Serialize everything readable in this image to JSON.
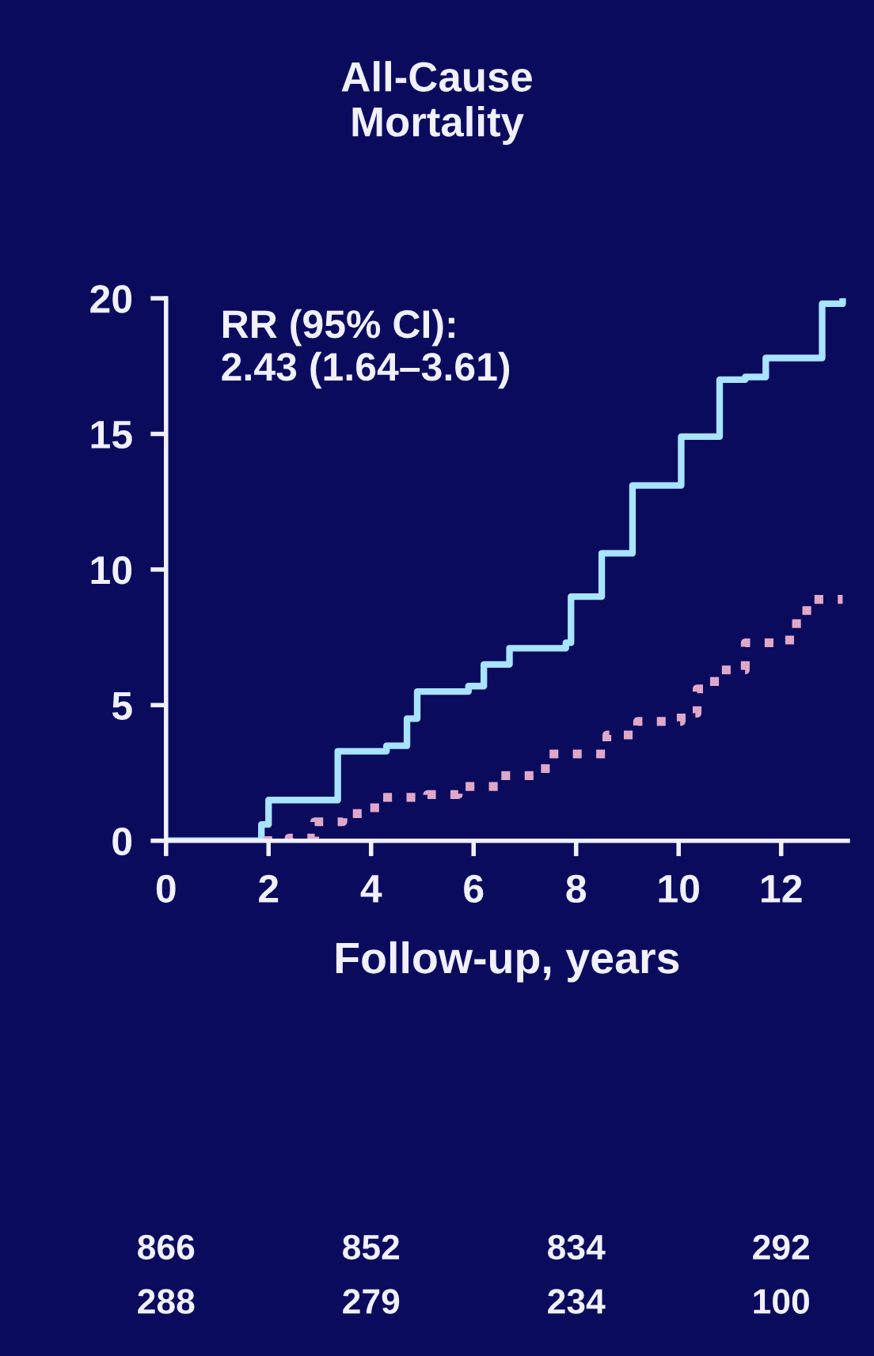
{
  "chart_data": {
    "type": "step",
    "title": "All-Cause\nMortality",
    "xlabel": "Follow-up, years",
    "annotations": [
      "RR (95% CI):\n2.43 (1.64–3.61)",
      "866",
      "852",
      "834",
      "292",
      "288",
      "279",
      "234",
      "100"
    ],
    "series": [
      {
        "color": "#a8e4ff",
        "line_style": "solid",
        "x": [
          0,
          1.86,
          2.0,
          2.9,
          3.35,
          4.3,
          4.7,
          4.9,
          5.9,
          6.2,
          6.7,
          7.8,
          7.9,
          8.5,
          9.1,
          10.05,
          10.8,
          11.3,
          11.7,
          12.7,
          12.8,
          13.2
        ],
        "values": [
          0,
          0.6,
          1.5,
          1.5,
          3.3,
          3.5,
          4.5,
          5.5,
          5.7,
          6.5,
          7.1,
          7.3,
          9.0,
          10.6,
          13.1,
          14.9,
          17.0,
          17.1,
          17.8,
          17.8,
          19.8,
          19.9
        ]
      },
      {
        "color": "#e0a8c8",
        "line_style": "dotted",
        "x": [
          1.9,
          2.4,
          2.9,
          3.45,
          4.07,
          5.1,
          5.7,
          6.5,
          7.4,
          8.6,
          9.2,
          10.05,
          10.36,
          10.7,
          11.3,
          11.9,
          12.3,
          12.5,
          13.2
        ],
        "values": [
          0,
          0.1,
          0.7,
          1.0,
          1.6,
          1.7,
          2.0,
          2.4,
          3.2,
          3.9,
          4.4,
          4.7,
          5.6,
          6.3,
          7.3,
          7.4,
          8.2,
          8.9,
          8.9
        ]
      }
    ],
    "xlim": [
      0,
      13.3
    ],
    "ylim": [
      0,
      20
    ],
    "xticks": [
      0,
      2,
      4,
      6,
      8,
      10,
      12
    ],
    "yticks": [
      0,
      5,
      10,
      15,
      20
    ],
    "grid": false,
    "legend": false
  }
}
